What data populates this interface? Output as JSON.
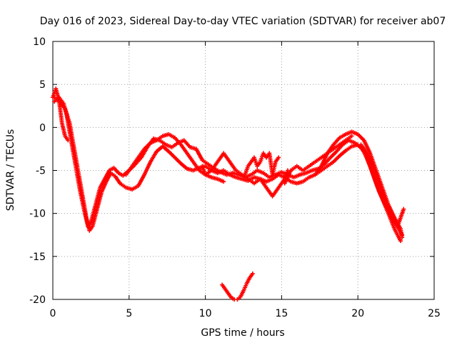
{
  "chart_data": {
    "type": "scatter",
    "title": "Day 016 of 2023, Sidereal Day-to-day VTEC variation (SDTVAR) for receiver ab07",
    "xlabel": "GPS time / hours",
    "ylabel": "SDTVAR / TECUs",
    "xlim": [
      0,
      25
    ],
    "ylim": [
      -20,
      10
    ],
    "xticks": [
      0,
      5,
      10,
      15,
      20,
      25
    ],
    "yticks": [
      -20,
      -15,
      -10,
      -5,
      0,
      5,
      10
    ],
    "grid": true,
    "marker": "+",
    "color": "#ff0000",
    "series": [
      {
        "name": "track-a",
        "points": [
          [
            0.0,
            3.5
          ],
          [
            0.2,
            4.5
          ],
          [
            0.4,
            3.2
          ],
          [
            0.6,
            0.5
          ],
          [
            0.8,
            -1.0
          ],
          [
            1.0,
            -1.5
          ]
        ]
      },
      {
        "name": "track-b",
        "points": [
          [
            0.1,
            3.0
          ],
          [
            0.4,
            3.5
          ],
          [
            0.7,
            2.8
          ],
          [
            0.9,
            1.5
          ],
          [
            1.2,
            -1.5
          ],
          [
            1.5,
            -4.5
          ],
          [
            1.8,
            -7.5
          ],
          [
            2.1,
            -10.0
          ],
          [
            2.3,
            -11.5
          ],
          [
            2.5,
            -11.0
          ],
          [
            2.8,
            -9.0
          ],
          [
            3.1,
            -7.0
          ],
          [
            3.4,
            -6.0
          ],
          [
            3.7,
            -5.0
          ],
          [
            4.0,
            -4.7
          ],
          [
            4.3,
            -5.3
          ],
          [
            4.6,
            -5.6
          ],
          [
            5.0,
            -5.0
          ],
          [
            5.4,
            -4.3
          ],
          [
            5.8,
            -3.5
          ],
          [
            6.2,
            -2.3
          ],
          [
            6.6,
            -1.3
          ],
          [
            7.0,
            -1.5
          ],
          [
            7.4,
            -2.0
          ],
          [
            7.8,
            -2.3
          ],
          [
            8.2,
            -1.8
          ],
          [
            8.6,
            -1.5
          ],
          [
            9.0,
            -2.3
          ],
          [
            9.4,
            -2.5
          ],
          [
            9.8,
            -3.8
          ],
          [
            10.2,
            -4.3
          ],
          [
            10.6,
            -4.8
          ],
          [
            11.0,
            -5.2
          ],
          [
            11.4,
            -5.5
          ],
          [
            11.8,
            -5.3
          ],
          [
            12.2,
            -5.5
          ],
          [
            12.6,
            -5.8
          ],
          [
            13.0,
            -5.5
          ],
          [
            13.4,
            -5.0
          ],
          [
            13.8,
            -5.3
          ],
          [
            14.2,
            -5.8
          ],
          [
            14.6,
            -5.5
          ],
          [
            15.0,
            -5.2
          ],
          [
            15.4,
            -5.5
          ],
          [
            15.8,
            -5.8
          ],
          [
            16.2,
            -5.5
          ],
          [
            16.6,
            -5.3
          ],
          [
            17.0,
            -5.0
          ],
          [
            17.4,
            -4.8
          ],
          [
            17.8,
            -4.3
          ],
          [
            18.2,
            -3.5
          ],
          [
            18.6,
            -2.8
          ],
          [
            19.0,
            -2.0
          ],
          [
            19.4,
            -1.5
          ],
          [
            19.8,
            -1.8
          ],
          [
            20.2,
            -2.3
          ],
          [
            20.6,
            -3.5
          ],
          [
            21.0,
            -5.5
          ],
          [
            21.4,
            -7.5
          ],
          [
            21.8,
            -9.0
          ],
          [
            22.2,
            -10.5
          ],
          [
            22.6,
            -11.5
          ],
          [
            22.9,
            -12.5
          ]
        ]
      },
      {
        "name": "track-c",
        "points": [
          [
            0.1,
            3.5
          ],
          [
            0.4,
            3.0
          ],
          [
            0.8,
            2.2
          ],
          [
            1.1,
            0.5
          ],
          [
            1.4,
            -2.5
          ],
          [
            1.7,
            -5.5
          ],
          [
            2.0,
            -8.5
          ],
          [
            2.2,
            -10.5
          ],
          [
            2.4,
            -12.0
          ],
          [
            2.6,
            -11.5
          ],
          [
            2.9,
            -9.5
          ],
          [
            3.2,
            -7.5
          ],
          [
            3.5,
            -6.3
          ],
          [
            3.8,
            -5.3
          ],
          [
            4.1,
            -5.7
          ],
          [
            4.4,
            -6.5
          ],
          [
            4.8,
            -7.0
          ],
          [
            5.2,
            -7.2
          ],
          [
            5.6,
            -6.8
          ],
          [
            6.0,
            -5.5
          ],
          [
            6.4,
            -4.0
          ],
          [
            6.8,
            -2.8
          ],
          [
            7.2,
            -2.2
          ],
          [
            7.6,
            -2.8
          ],
          [
            8.0,
            -3.5
          ],
          [
            8.4,
            -4.2
          ],
          [
            8.8,
            -4.8
          ],
          [
            9.2,
            -5.0
          ],
          [
            9.6,
            -4.7
          ],
          [
            10.0,
            -4.5
          ],
          [
            10.4,
            -5.0
          ],
          [
            10.8,
            -5.3
          ],
          [
            11.2,
            -5.0
          ],
          [
            11.6,
            -5.5
          ],
          [
            12.0,
            -5.8
          ],
          [
            12.4,
            -6.0
          ],
          [
            12.8,
            -6.2
          ],
          [
            13.2,
            -5.8
          ],
          [
            13.6,
            -6.0
          ],
          [
            14.0,
            -6.3
          ],
          [
            14.4,
            -6.0
          ],
          [
            14.8,
            -5.5
          ],
          [
            15.2,
            -5.8
          ],
          [
            15.6,
            -6.3
          ],
          [
            16.0,
            -6.5
          ],
          [
            16.4,
            -6.3
          ],
          [
            16.8,
            -5.8
          ],
          [
            17.2,
            -5.5
          ],
          [
            17.6,
            -5.0
          ],
          [
            18.0,
            -4.5
          ],
          [
            18.4,
            -4.0
          ],
          [
            18.8,
            -3.3
          ],
          [
            19.2,
            -2.7
          ],
          [
            19.6,
            -2.2
          ],
          [
            20.0,
            -2.0
          ],
          [
            20.4,
            -2.8
          ],
          [
            20.8,
            -4.5
          ],
          [
            21.2,
            -6.5
          ],
          [
            21.6,
            -8.3
          ],
          [
            22.0,
            -10.0
          ],
          [
            22.4,
            -11.8
          ],
          [
            22.8,
            -13.2
          ]
        ]
      },
      {
        "name": "track-d",
        "points": [
          [
            4.8,
            -5.5
          ],
          [
            5.2,
            -4.5
          ],
          [
            5.6,
            -3.5
          ],
          [
            6.0,
            -2.5
          ],
          [
            6.4,
            -1.8
          ],
          [
            6.8,
            -1.5
          ],
          [
            7.2,
            -1.0
          ],
          [
            7.6,
            -0.8
          ],
          [
            8.0,
            -1.2
          ],
          [
            8.4,
            -2.0
          ],
          [
            8.8,
            -3.0
          ],
          [
            9.2,
            -4.0
          ],
          [
            9.6,
            -5.0
          ],
          [
            10.0,
            -5.5
          ],
          [
            10.4,
            -5.8
          ],
          [
            10.8,
            -6.0
          ],
          [
            11.2,
            -6.3
          ]
        ]
      },
      {
        "name": "track-e",
        "points": [
          [
            17.2,
            -5.5
          ],
          [
            17.6,
            -4.5
          ],
          [
            18.0,
            -3.0
          ],
          [
            18.4,
            -2.0
          ],
          [
            18.8,
            -1.2
          ],
          [
            19.2,
            -0.8
          ],
          [
            19.6,
            -0.5
          ],
          [
            20.0,
            -0.8
          ],
          [
            20.4,
            -1.5
          ],
          [
            20.8,
            -3.0
          ],
          [
            21.2,
            -5.0
          ],
          [
            21.6,
            -7.0
          ],
          [
            22.0,
            -9.0
          ],
          [
            22.4,
            -10.5
          ],
          [
            22.8,
            -11.8
          ],
          [
            22.9,
            -12.8
          ]
        ]
      },
      {
        "name": "track-f",
        "points": [
          [
            20.2,
            -2.0
          ],
          [
            20.6,
            -3.0
          ],
          [
            21.0,
            -4.5
          ],
          [
            21.4,
            -6.5
          ],
          [
            21.8,
            -8.5
          ],
          [
            22.2,
            -10.0
          ],
          [
            22.6,
            -11.5
          ],
          [
            23.0,
            -9.5
          ]
        ]
      },
      {
        "name": "track-g",
        "points": [
          [
            9.8,
            -4.5
          ],
          [
            10.0,
            -5.5
          ],
          [
            10.4,
            -5.0
          ],
          [
            10.8,
            -4.0
          ],
          [
            11.2,
            -3.0
          ],
          [
            11.6,
            -4.0
          ],
          [
            12.0,
            -5.0
          ],
          [
            12.4,
            -5.5
          ],
          [
            12.8,
            -6.0
          ],
          [
            13.2,
            -6.5
          ],
          [
            13.6,
            -6.0
          ],
          [
            14.0,
            -7.0
          ],
          [
            14.4,
            -8.0
          ],
          [
            14.8,
            -7.0
          ],
          [
            15.2,
            -6.0
          ],
          [
            15.4,
            -5.0
          ]
        ]
      },
      {
        "name": "track-h",
        "points": [
          [
            12.6,
            -5.5
          ],
          [
            12.8,
            -4.5
          ],
          [
            13.0,
            -4.0
          ],
          [
            13.2,
            -3.5
          ],
          [
            13.4,
            -4.5
          ],
          [
            13.6,
            -4.0
          ],
          [
            13.8,
            -3.0
          ],
          [
            14.0,
            -3.5
          ],
          [
            14.2,
            -3.0
          ],
          [
            14.4,
            -5.5
          ],
          [
            14.6,
            -4.0
          ],
          [
            14.8,
            -3.5
          ]
        ]
      },
      {
        "name": "track-i",
        "points": [
          [
            15.2,
            -6.5
          ],
          [
            15.6,
            -5.0
          ],
          [
            16.0,
            -4.5
          ],
          [
            16.4,
            -5.0
          ],
          [
            16.8,
            -4.5
          ],
          [
            17.2,
            -4.0
          ],
          [
            17.6,
            -3.5
          ],
          [
            18.0,
            -3.0
          ],
          [
            18.4,
            -2.5
          ],
          [
            18.8,
            -2.0
          ],
          [
            19.2,
            -1.5
          ],
          [
            19.6,
            -1.0
          ]
        ]
      },
      {
        "name": "track-j",
        "points": [
          [
            11.1,
            -18.3
          ],
          [
            11.3,
            -18.8
          ],
          [
            11.5,
            -19.3
          ],
          [
            11.7,
            -19.8
          ],
          [
            11.9,
            -20.0
          ],
          [
            12.1,
            -20.0
          ],
          [
            12.3,
            -19.7
          ],
          [
            12.5,
            -19.0
          ],
          [
            12.7,
            -18.2
          ],
          [
            12.9,
            -17.5
          ],
          [
            13.1,
            -17.0
          ]
        ]
      }
    ]
  }
}
